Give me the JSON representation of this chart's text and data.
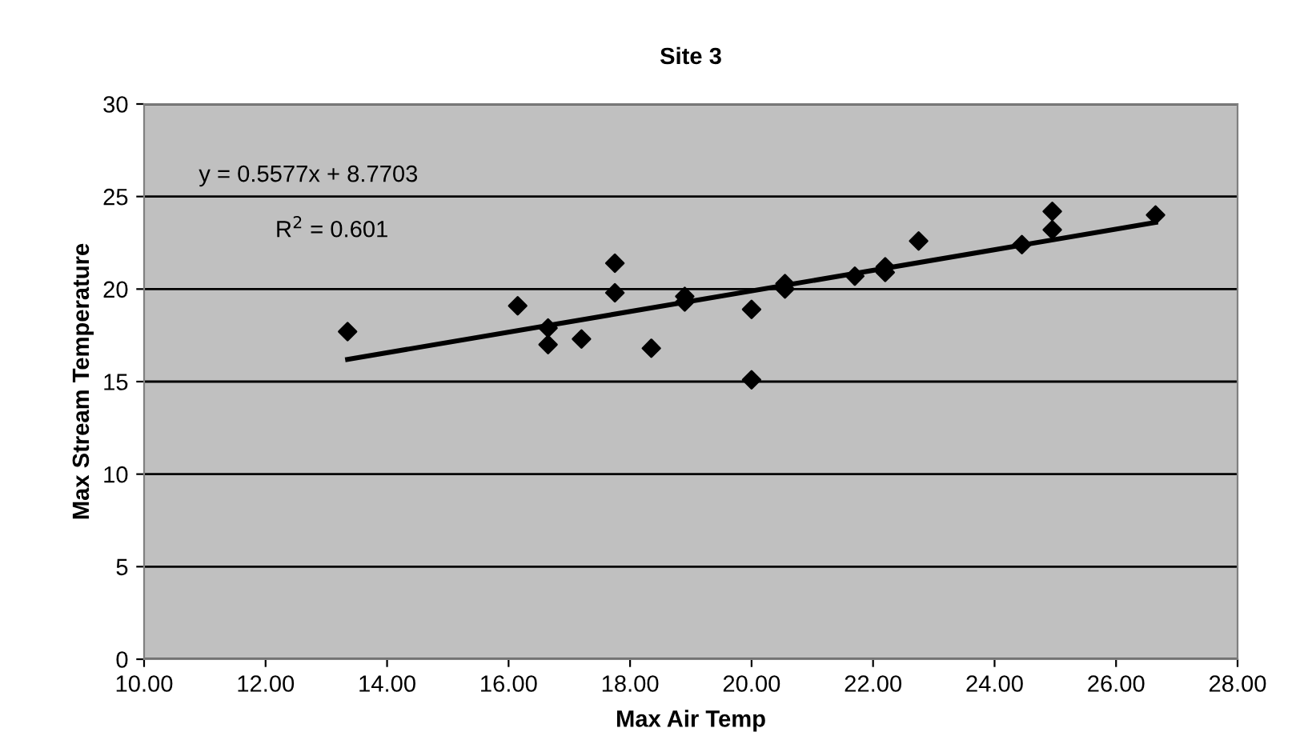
{
  "chart_data": {
    "type": "scatter",
    "title": "Site 3",
    "xlabel": "Max Air Temp",
    "ylabel": "Max Stream Temperature",
    "annotations": [
      "y = 0.5577x + 8.7703",
      "R$^{2}$ = 0.601"
    ],
    "series": [
      {
        "color": "#000000",
        "marker": "diamond",
        "x": [
          13.35,
          16.15,
          16.65,
          16.65,
          17.2,
          17.75,
          17.75,
          18.35,
          18.9,
          18.9,
          20.0,
          20.0,
          20.55,
          20.55,
          21.7,
          22.2,
          22.2,
          22.75,
          24.45,
          24.95,
          24.95,
          26.65
        ],
        "values": [
          17.7,
          19.1,
          17.9,
          17.0,
          17.3,
          21.4,
          19.8,
          16.8,
          19.6,
          19.3,
          18.9,
          15.1,
          20.3,
          20.0,
          20.7,
          21.2,
          20.9,
          22.6,
          22.4,
          24.2,
          23.2,
          24.0
        ]
      },
      {
        "type": "line",
        "color": "#000000",
        "x": [
          13.35,
          26.65
        ],
        "values": [
          16.2,
          23.6
        ]
      }
    ],
    "xlim": [
      10,
      28
    ],
    "xticks": [
      {
        "value": 10,
        "label": "10.00"
      },
      {
        "value": 12,
        "label": "12.00"
      },
      {
        "value": 14,
        "label": "14.00"
      },
      {
        "value": 16,
        "label": "16.00"
      },
      {
        "value": 18,
        "label": "18.00"
      },
      {
        "value": 20,
        "label": "20.00"
      },
      {
        "value": 22,
        "label": "22.00"
      },
      {
        "value": 24,
        "label": "24.00"
      },
      {
        "value": 26,
        "label": "26.00"
      },
      {
        "value": 28,
        "label": "28.00"
      }
    ],
    "ylim": [
      0,
      30
    ],
    "yticks": [
      0,
      5,
      10,
      15,
      20,
      25,
      30
    ],
    "grid": "y",
    "legend": false
  }
}
